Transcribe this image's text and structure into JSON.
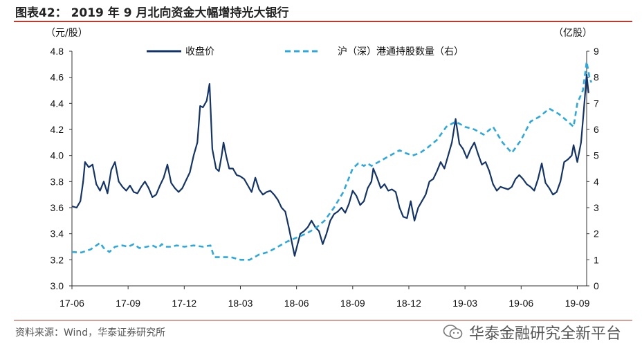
{
  "header": {
    "title": "图表42： 2019 年 9 月北向资金大幅增持光大银行"
  },
  "footer": {
    "source": "资料来源：Wind，华泰证券研究所",
    "brand": "华泰金融研究全新平台",
    "brand_icon": "wechat-icon"
  },
  "colors": {
    "series1": "#13336b",
    "series2": "#2aa9e0",
    "accent_line": "#c0392b"
  },
  "chart_data": {
    "type": "line",
    "title": "2019 年 9 月北向资金大幅增持光大银行",
    "y_left": {
      "unit": "（元/股）",
      "min": 3.0,
      "max": 4.8,
      "ticks": [
        "3.0",
        "3.2",
        "3.4",
        "3.6",
        "3.8",
        "4.0",
        "4.2",
        "4.4",
        "4.6",
        "4.8"
      ]
    },
    "y_right": {
      "unit": "（亿股）",
      "min": 0,
      "max": 9,
      "ticks": [
        "0",
        "1",
        "2",
        "3",
        "4",
        "5",
        "6",
        "7",
        "8",
        "9"
      ]
    },
    "x": {
      "min": 0,
      "max": 27.5,
      "ticks": [
        {
          "label": "17-06",
          "value": 0
        },
        {
          "label": "17-09",
          "value": 3
        },
        {
          "label": "17-12",
          "value": 6
        },
        {
          "label": "18-03",
          "value": 9
        },
        {
          "label": "18-06",
          "value": 12
        },
        {
          "label": "18-09",
          "value": 15
        },
        {
          "label": "18-12",
          "value": 18
        },
        {
          "label": "19-03",
          "value": 21
        },
        {
          "label": "19-06",
          "value": 24
        },
        {
          "label": "19-09",
          "value": 27
        }
      ]
    },
    "legend": {
      "position": "top"
    },
    "series": [
      {
        "name": "收盘价",
        "axis": "left",
        "style": "solid",
        "points": [
          [
            0,
            3.61
          ],
          [
            0.25,
            3.6
          ],
          [
            0.45,
            3.65
          ],
          [
            0.6,
            3.8
          ],
          [
            0.7,
            3.95
          ],
          [
            0.9,
            3.91
          ],
          [
            1.1,
            3.93
          ],
          [
            1.3,
            3.78
          ],
          [
            1.5,
            3.73
          ],
          [
            1.7,
            3.8
          ],
          [
            1.9,
            3.71
          ],
          [
            2.1,
            3.89
          ],
          [
            2.3,
            3.95
          ],
          [
            2.5,
            3.8
          ],
          [
            2.7,
            3.76
          ],
          [
            2.9,
            3.73
          ],
          [
            3.1,
            3.77
          ],
          [
            3.3,
            3.72
          ],
          [
            3.5,
            3.71
          ],
          [
            3.7,
            3.76
          ],
          [
            3.9,
            3.8
          ],
          [
            4.1,
            3.75
          ],
          [
            4.3,
            3.68
          ],
          [
            4.5,
            3.7
          ],
          [
            4.7,
            3.77
          ],
          [
            4.9,
            3.83
          ],
          [
            5.1,
            3.93
          ],
          [
            5.3,
            3.79
          ],
          [
            5.5,
            3.75
          ],
          [
            5.7,
            3.72
          ],
          [
            5.9,
            3.75
          ],
          [
            6.1,
            3.81
          ],
          [
            6.3,
            3.87
          ],
          [
            6.5,
            4.0
          ],
          [
            6.7,
            4.1
          ],
          [
            6.85,
            4.38
          ],
          [
            7.0,
            4.37
          ],
          [
            7.2,
            4.42
          ],
          [
            7.35,
            4.55
          ],
          [
            7.5,
            4.05
          ],
          [
            7.7,
            3.9
          ],
          [
            7.85,
            3.88
          ],
          [
            8.0,
            4.0
          ],
          [
            8.1,
            4.1
          ],
          [
            8.25,
            3.99
          ],
          [
            8.4,
            3.9
          ],
          [
            8.6,
            3.9
          ],
          [
            8.8,
            3.85
          ],
          [
            9.0,
            3.84
          ],
          [
            9.2,
            3.82
          ],
          [
            9.4,
            3.77
          ],
          [
            9.6,
            3.72
          ],
          [
            9.8,
            3.83
          ],
          [
            10.0,
            3.74
          ],
          [
            10.2,
            3.7
          ],
          [
            10.4,
            3.72
          ],
          [
            10.6,
            3.73
          ],
          [
            10.8,
            3.7
          ],
          [
            11.0,
            3.66
          ],
          [
            11.2,
            3.6
          ],
          [
            11.4,
            3.57
          ],
          [
            11.6,
            3.44
          ],
          [
            11.8,
            3.3
          ],
          [
            11.9,
            3.23
          ],
          [
            12.0,
            3.29
          ],
          [
            12.2,
            3.4
          ],
          [
            12.4,
            3.42
          ],
          [
            12.6,
            3.45
          ],
          [
            12.8,
            3.5
          ],
          [
            13.0,
            3.45
          ],
          [
            13.2,
            3.42
          ],
          [
            13.4,
            3.32
          ],
          [
            13.6,
            3.4
          ],
          [
            13.8,
            3.5
          ],
          [
            14.0,
            3.55
          ],
          [
            14.2,
            3.57
          ],
          [
            14.4,
            3.6
          ],
          [
            14.6,
            3.56
          ],
          [
            14.8,
            3.63
          ],
          [
            15.0,
            3.73
          ],
          [
            15.2,
            3.69
          ],
          [
            15.4,
            3.62
          ],
          [
            15.6,
            3.65
          ],
          [
            15.8,
            3.75
          ],
          [
            16.0,
            3.8
          ],
          [
            16.1,
            3.9
          ],
          [
            16.3,
            3.83
          ],
          [
            16.5,
            3.75
          ],
          [
            16.7,
            3.78
          ],
          [
            16.9,
            3.73
          ],
          [
            17.1,
            3.74
          ],
          [
            17.3,
            3.72
          ],
          [
            17.5,
            3.6
          ],
          [
            17.7,
            3.53
          ],
          [
            17.9,
            3.52
          ],
          [
            18.1,
            3.65
          ],
          [
            18.3,
            3.5
          ],
          [
            18.5,
            3.6
          ],
          [
            18.7,
            3.65
          ],
          [
            18.9,
            3.7
          ],
          [
            19.1,
            3.8
          ],
          [
            19.3,
            3.82
          ],
          [
            19.5,
            3.88
          ],
          [
            19.7,
            3.95
          ],
          [
            19.9,
            3.9
          ],
          [
            20.1,
            4.0
          ],
          [
            20.3,
            4.1
          ],
          [
            20.5,
            4.28
          ],
          [
            20.7,
            4.09
          ],
          [
            20.9,
            4.05
          ],
          [
            21.1,
            3.98
          ],
          [
            21.3,
            4.05
          ],
          [
            21.5,
            4.1
          ],
          [
            21.7,
            4.01
          ],
          [
            21.9,
            3.93
          ],
          [
            22.1,
            3.95
          ],
          [
            22.3,
            3.88
          ],
          [
            22.5,
            3.78
          ],
          [
            22.7,
            3.73
          ],
          [
            22.9,
            3.76
          ],
          [
            23.1,
            3.75
          ],
          [
            23.3,
            3.74
          ],
          [
            23.5,
            3.76
          ],
          [
            23.7,
            3.82
          ],
          [
            23.9,
            3.85
          ],
          [
            24.1,
            3.82
          ],
          [
            24.3,
            3.78
          ],
          [
            24.5,
            3.76
          ],
          [
            24.7,
            3.73
          ],
          [
            24.9,
            3.82
          ],
          [
            25.1,
            3.94
          ],
          [
            25.3,
            3.79
          ],
          [
            25.5,
            3.75
          ],
          [
            25.7,
            3.7
          ],
          [
            25.9,
            3.72
          ],
          [
            26.1,
            3.8
          ],
          [
            26.3,
            3.95
          ],
          [
            26.5,
            3.97
          ],
          [
            26.7,
            4.0
          ],
          [
            26.8,
            4.08
          ],
          [
            27.0,
            3.95
          ],
          [
            27.2,
            4.1
          ],
          [
            27.35,
            4.35
          ],
          [
            27.5,
            4.62
          ],
          [
            27.6,
            4.48
          ]
        ]
      },
      {
        "name": "沪（深）港通持股数量（右）",
        "axis": "right",
        "style": "dashed",
        "points": [
          [
            0,
            1.3
          ],
          [
            0.5,
            1.28
          ],
          [
            1.0,
            1.4
          ],
          [
            1.5,
            1.65
          ],
          [
            1.7,
            1.45
          ],
          [
            2.0,
            1.3
          ],
          [
            2.3,
            1.5
          ],
          [
            2.7,
            1.55
          ],
          [
            3.0,
            1.5
          ],
          [
            3.3,
            1.6
          ],
          [
            3.6,
            1.45
          ],
          [
            4.0,
            1.5
          ],
          [
            4.3,
            1.55
          ],
          [
            4.6,
            1.45
          ],
          [
            4.8,
            1.6
          ],
          [
            5.0,
            1.5
          ],
          [
            5.3,
            1.5
          ],
          [
            5.6,
            1.55
          ],
          [
            6.0,
            1.5
          ],
          [
            6.5,
            1.55
          ],
          [
            7.0,
            1.5
          ],
          [
            7.4,
            1.55
          ],
          [
            7.6,
            1.1
          ],
          [
            8.0,
            1.1
          ],
          [
            8.5,
            1.1
          ],
          [
            9.0,
            1.0
          ],
          [
            9.5,
            1.0
          ],
          [
            10.0,
            1.2
          ],
          [
            10.5,
            1.3
          ],
          [
            11.0,
            1.5
          ],
          [
            11.5,
            1.7
          ],
          [
            12.0,
            1.85
          ],
          [
            12.5,
            2.0
          ],
          [
            13.0,
            2.2
          ],
          [
            13.5,
            2.5
          ],
          [
            14.0,
            3.0
          ],
          [
            14.5,
            3.6
          ],
          [
            15.0,
            4.5
          ],
          [
            15.3,
            4.7
          ],
          [
            15.6,
            4.6
          ],
          [
            15.8,
            4.7
          ],
          [
            16.0,
            4.6
          ],
          [
            16.5,
            4.8
          ],
          [
            17.0,
            5.0
          ],
          [
            17.5,
            5.2
          ],
          [
            17.8,
            5.1
          ],
          [
            18.2,
            5.0
          ],
          [
            18.6,
            5.1
          ],
          [
            19.0,
            5.3
          ],
          [
            19.5,
            5.6
          ],
          [
            20.0,
            6.1
          ],
          [
            20.5,
            6.3
          ],
          [
            21.0,
            6.1
          ],
          [
            21.5,
            6.0
          ],
          [
            22.0,
            5.8
          ],
          [
            22.5,
            6.1
          ],
          [
            23.0,
            5.5
          ],
          [
            23.5,
            5.1
          ],
          [
            24.0,
            5.6
          ],
          [
            24.5,
            6.3
          ],
          [
            25.0,
            6.5
          ],
          [
            25.5,
            6.8
          ],
          [
            26.0,
            6.6
          ],
          [
            26.5,
            6.3
          ],
          [
            26.8,
            6.1
          ],
          [
            27.0,
            7.0
          ],
          [
            27.3,
            7.5
          ],
          [
            27.5,
            8.6
          ],
          [
            27.65,
            8.0
          ],
          [
            27.75,
            7.8
          ]
        ]
      }
    ]
  }
}
